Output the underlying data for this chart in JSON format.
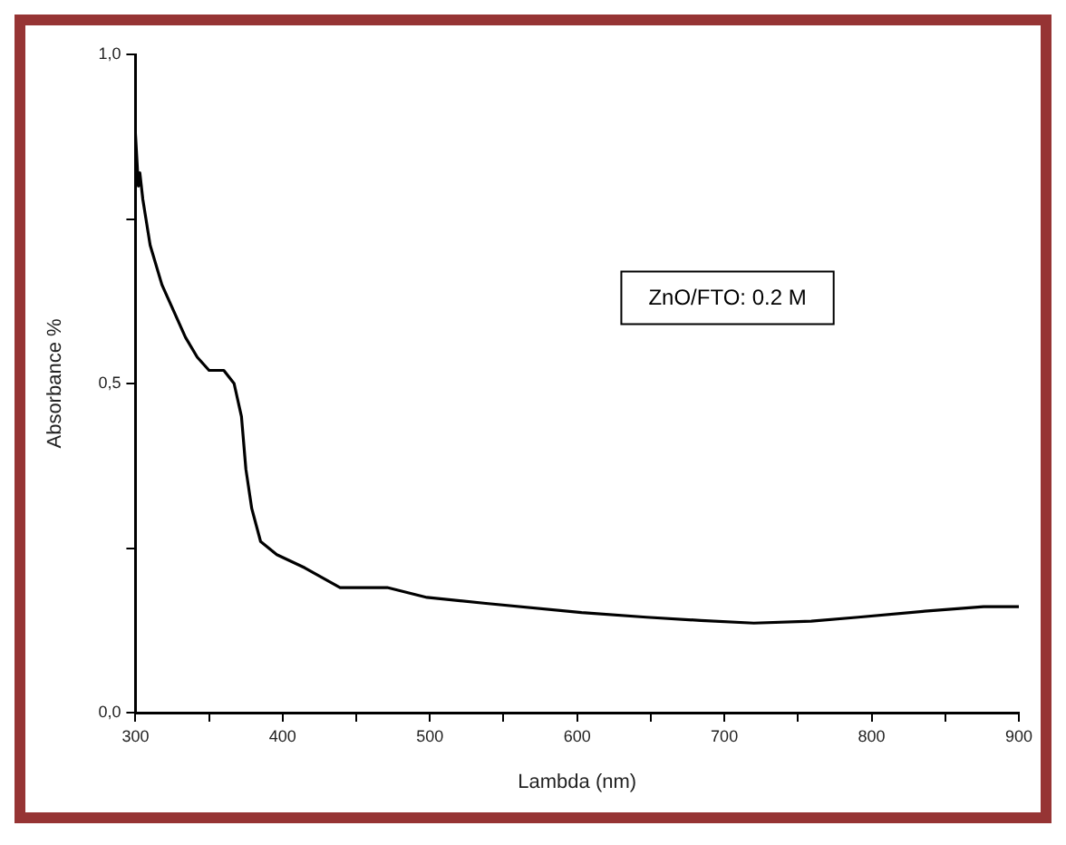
{
  "chart_data": {
    "type": "line",
    "xlabel": "Lambda (nm)",
    "ylabel": "Absorbance %",
    "annotations": [
      "ZnO/FTO: 0.2 M"
    ],
    "series": [
      {
        "color": "#000000",
        "x": [
          300,
          302,
          303,
          305,
          310,
          318,
          326,
          334,
          342,
          350,
          360,
          367,
          372,
          375,
          379,
          385,
          396,
          415,
          439,
          471,
          498,
          538,
          603,
          647,
          684,
          720,
          759,
          791,
          836,
          876,
          900
        ],
        "values": [
          0.88,
          0.8,
          0.82,
          0.78,
          0.71,
          0.65,
          0.61,
          0.57,
          0.54,
          0.52,
          0.52,
          0.5,
          0.45,
          0.37,
          0.31,
          0.26,
          0.24,
          0.22,
          0.19,
          0.19,
          0.175,
          0.166,
          0.152,
          0.145,
          0.14,
          0.136,
          0.139,
          0.145,
          0.154,
          0.161,
          0.161
        ]
      }
    ],
    "xlim": [
      300,
      900
    ],
    "xticks": [
      300,
      {
        "value": 350,
        "label": null
      },
      400,
      {
        "value": 450,
        "label": null
      },
      500,
      {
        "value": 550,
        "label": null
      },
      600,
      {
        "value": 650,
        "label": null
      },
      700,
      {
        "value": 750,
        "label": null
      },
      800,
      {
        "value": 850,
        "label": null
      },
      900
    ],
    "ylim": [
      0,
      1
    ],
    "yticks": [
      {
        "value": 0,
        "label": "0,0"
      },
      {
        "value": 0.25,
        "label": null
      },
      {
        "value": 0.5,
        "label": "0,5"
      },
      {
        "value": 0.75,
        "label": null
      },
      {
        "value": 1,
        "label": "1,0"
      }
    ],
    "grid": false,
    "legend": false,
    "marker": "none",
    "line_style": "solid"
  }
}
